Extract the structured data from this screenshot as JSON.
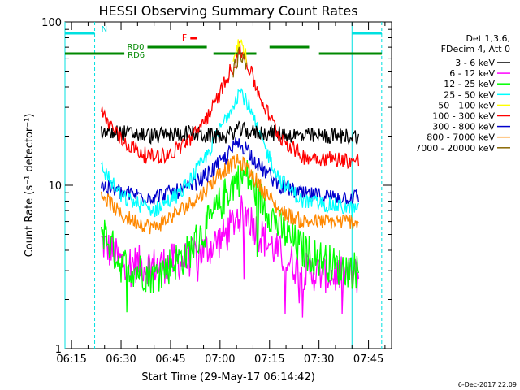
{
  "chart_data": {
    "type": "line",
    "title": "HESSI Observing Summary Count Rates",
    "xlabel": "Start Time (29-May-17 06:14:42)",
    "ylabel": "Count Rate (s⁻¹ detector⁻¹)",
    "y_scale": "log",
    "ylim": [
      1,
      100
    ],
    "xlim": [
      "06:13",
      "07:52"
    ],
    "x_ticks": [
      "06:15",
      "06:30",
      "06:45",
      "07:00",
      "07:15",
      "07:30",
      "07:45"
    ],
    "y_ticks": [
      "1",
      "10",
      "100"
    ],
    "grid": false,
    "legend_position": "top-right",
    "legend_header": [
      "Det 1,3,6,",
      "FDecim 4, Att 0"
    ],
    "footer_date": "6-Dec-2017 22:09",
    "data_start": "06:24",
    "data_end": "07:42",
    "series": [
      {
        "name": "3 - 6 keV",
        "color": "#000000",
        "points": [
          [
            "06:24",
            21
          ],
          [
            "06:30",
            21
          ],
          [
            "06:40",
            20
          ],
          [
            "06:50",
            21
          ],
          [
            "06:57",
            20
          ],
          [
            "07:02",
            20
          ],
          [
            "07:05",
            22
          ],
          [
            "07:10",
            21
          ],
          [
            "07:15",
            21
          ],
          [
            "07:25",
            20
          ],
          [
            "07:35",
            20
          ],
          [
            "07:42",
            20
          ]
        ]
      },
      {
        "name": "6 - 12 keV",
        "color": "#ff00ff",
        "points": [
          [
            "06:24",
            4.5
          ],
          [
            "06:30",
            3.4
          ],
          [
            "06:40",
            3.2
          ],
          [
            "06:50",
            3.5
          ],
          [
            "06:57",
            4.2
          ],
          [
            "07:02",
            5.0
          ],
          [
            "07:05",
            6.5
          ],
          [
            "07:08",
            6.8
          ],
          [
            "07:12",
            5.0
          ],
          [
            "07:18",
            3.8
          ],
          [
            "07:25",
            3.0
          ],
          [
            "07:35",
            2.8
          ],
          [
            "07:42",
            2.8
          ]
        ]
      },
      {
        "name": "12 - 25 keV",
        "color": "#00ff00",
        "points": [
          [
            "06:24",
            5.5
          ],
          [
            "06:30",
            3.3
          ],
          [
            "06:40",
            2.8
          ],
          [
            "06:50",
            3.8
          ],
          [
            "06:57",
            6.0
          ],
          [
            "07:02",
            9.0
          ],
          [
            "07:05",
            11.0
          ],
          [
            "07:08",
            11.5
          ],
          [
            "07:12",
            8.5
          ],
          [
            "07:18",
            5.5
          ],
          [
            "07:25",
            4.0
          ],
          [
            "07:35",
            3.2
          ],
          [
            "07:42",
            3.0
          ]
        ]
      },
      {
        "name": "25 - 50 keV",
        "color": "#00ffff",
        "points": [
          [
            "06:24",
            13
          ],
          [
            "06:30",
            8.5
          ],
          [
            "06:40",
            7.0
          ],
          [
            "06:48",
            9.0
          ],
          [
            "06:55",
            14
          ],
          [
            "07:00",
            22
          ],
          [
            "07:04",
            32
          ],
          [
            "07:06",
            38
          ],
          [
            "07:08",
            33
          ],
          [
            "07:12",
            20
          ],
          [
            "07:18",
            11
          ],
          [
            "07:25",
            8.0
          ],
          [
            "07:35",
            7.5
          ],
          [
            "07:42",
            7.0
          ]
        ]
      },
      {
        "name": "50 - 100 keV",
        "color": "#ffff00",
        "points": [
          [
            "07:04",
            60
          ],
          [
            "07:06",
            75
          ],
          [
            "07:08",
            60
          ]
        ]
      },
      {
        "name": "100 - 300 keV",
        "color": "#ff0000",
        "points": [
          [
            "06:24",
            28
          ],
          [
            "06:30",
            19
          ],
          [
            "06:38",
            15
          ],
          [
            "06:45",
            15.5
          ],
          [
            "06:52",
            20
          ],
          [
            "06:58",
            30
          ],
          [
            "07:02",
            45
          ],
          [
            "07:05",
            60
          ],
          [
            "07:06",
            68
          ],
          [
            "07:08",
            58
          ],
          [
            "07:12",
            35
          ],
          [
            "07:18",
            20
          ],
          [
            "07:25",
            15
          ],
          [
            "07:35",
            14.5
          ],
          [
            "07:42",
            14
          ]
        ]
      },
      {
        "name": "300 - 800 keV",
        "color": "#0000cc",
        "points": [
          [
            "06:24",
            10
          ],
          [
            "06:30",
            9.0
          ],
          [
            "06:40",
            8.5
          ],
          [
            "06:50",
            9.5
          ],
          [
            "06:57",
            12
          ],
          [
            "07:02",
            15
          ],
          [
            "07:05",
            18
          ],
          [
            "07:08",
            17
          ],
          [
            "07:12",
            13
          ],
          [
            "07:18",
            10
          ],
          [
            "07:25",
            8.8
          ],
          [
            "07:35",
            8.5
          ],
          [
            "07:42",
            8.5
          ]
        ]
      },
      {
        "name": "800 - 7000 keV",
        "color": "#ff8800",
        "points": [
          [
            "06:24",
            9.0
          ],
          [
            "06:30",
            6.5
          ],
          [
            "06:40",
            5.5
          ],
          [
            "06:48",
            7.0
          ],
          [
            "06:55",
            9.0
          ],
          [
            "07:00",
            12
          ],
          [
            "07:05",
            14
          ],
          [
            "07:08",
            13
          ],
          [
            "07:12",
            10
          ],
          [
            "07:18",
            7.0
          ],
          [
            "07:25",
            6.0
          ],
          [
            "07:35",
            6.0
          ],
          [
            "07:42",
            6.0
          ]
        ]
      },
      {
        "name": "7000 - 20000 keV",
        "color": "#886600",
        "points": [
          [
            "07:04",
            50
          ],
          [
            "07:06",
            65
          ],
          [
            "07:08",
            55
          ]
        ]
      }
    ],
    "annotations": [
      {
        "label": "N",
        "color": "#00e0e0",
        "segments": [
          [
            "06:13",
            "06:22"
          ],
          [
            "07:40",
            "07:49"
          ]
        ]
      },
      {
        "label": "RD0",
        "color": "#008800",
        "segments": [
          [
            "06:38",
            "06:56"
          ],
          [
            "07:15",
            "07:27"
          ]
        ]
      },
      {
        "label": "RD6",
        "color": "#008800",
        "segments": [
          [
            "06:13",
            "06:31"
          ],
          [
            "06:58",
            "07:11"
          ],
          [
            "07:30",
            "07:49"
          ]
        ]
      },
      {
        "label": "F",
        "color": "#ff0000",
        "segments": [
          [
            "06:51",
            "06:53"
          ]
        ]
      }
    ],
    "vertical_lines": [
      {
        "at": "06:22",
        "color": "#00e0e0",
        "style": "dashed"
      },
      {
        "at": "07:49",
        "color": "#00e0e0",
        "style": "dashed"
      },
      {
        "at": "07:40",
        "color": "#00e0e0",
        "style": "solid"
      },
      {
        "at": "06:13",
        "color": "#00e0e0",
        "style": "solid"
      }
    ]
  }
}
